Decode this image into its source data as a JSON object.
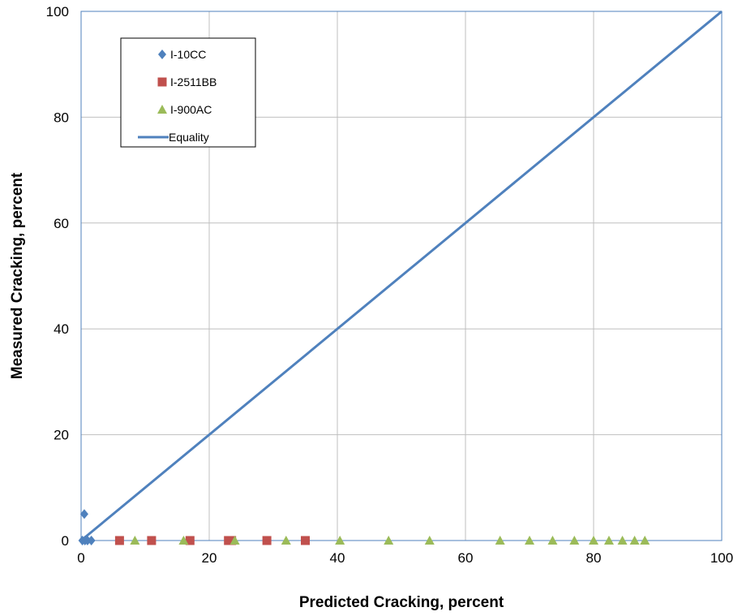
{
  "chart_data": {
    "type": "scatter",
    "xlabel": "Predicted  Cracking, percent",
    "ylabel": "Measured Cracking, percent",
    "xlim": [
      0,
      100
    ],
    "ylim": [
      0,
      100
    ],
    "xticks": [
      "0",
      "20",
      "40",
      "60",
      "80",
      "100"
    ],
    "yticks": [
      "0",
      "20",
      "40",
      "60",
      "80",
      "100"
    ],
    "grid": true,
    "legend_position": "top-left",
    "series": [
      {
        "name": "I-10CC",
        "marker": "diamond",
        "color": "#4F81BD",
        "points": [
          [
            0.5,
            5
          ],
          [
            0.2,
            0
          ],
          [
            0.6,
            0
          ],
          [
            1.0,
            0
          ],
          [
            1.6,
            0
          ]
        ]
      },
      {
        "name": "I-2511BB",
        "marker": "square",
        "color": "#C0504D",
        "points": [
          [
            6,
            0
          ],
          [
            11,
            0
          ],
          [
            17,
            0
          ],
          [
            23,
            0
          ],
          [
            23.5,
            0
          ],
          [
            29,
            0
          ],
          [
            35,
            0
          ]
        ]
      },
      {
        "name": "I-900AC",
        "marker": "triangle",
        "color": "#9BBB59",
        "points": [
          [
            8.4,
            0
          ],
          [
            16,
            0
          ],
          [
            24,
            0
          ],
          [
            32,
            0
          ],
          [
            40.4,
            0
          ],
          [
            48,
            0
          ],
          [
            54.4,
            0
          ],
          [
            65.4,
            0
          ],
          [
            70,
            0
          ],
          [
            73.6,
            0
          ],
          [
            77,
            0
          ],
          [
            80,
            0
          ],
          [
            82.4,
            0
          ],
          [
            84.5,
            0
          ],
          [
            86.4,
            0
          ],
          [
            88,
            0
          ]
        ]
      },
      {
        "name": "Equality",
        "marker": "line",
        "color": "#4F81BD",
        "points": [
          [
            0,
            0
          ],
          [
            100,
            100
          ]
        ]
      }
    ]
  }
}
